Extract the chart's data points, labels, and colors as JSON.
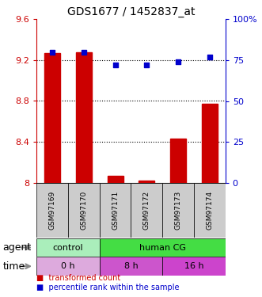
{
  "title": "GDS1677 / 1452837_at",
  "samples": [
    "GSM97169",
    "GSM97170",
    "GSM97171",
    "GSM97172",
    "GSM97173",
    "GSM97174"
  ],
  "red_values": [
    9.27,
    9.28,
    8.07,
    8.02,
    8.43,
    8.77
  ],
  "blue_values": [
    80,
    80,
    72,
    72,
    74,
    77
  ],
  "ylim_left": [
    8.0,
    9.6
  ],
  "ylim_right": [
    0,
    100
  ],
  "yticks_left": [
    8.0,
    8.4,
    8.8,
    9.2,
    9.6
  ],
  "ytick_labels_left": [
    "8",
    "8.4",
    "8.8",
    "9.2",
    "9.6"
  ],
  "yticks_right": [
    0,
    25,
    50,
    75,
    100
  ],
  "ytick_labels_right": [
    "0",
    "25",
    "50",
    "75",
    "100%"
  ],
  "bar_color": "#cc0000",
  "dot_color": "#0000cc",
  "agent_row": [
    {
      "label": "control",
      "span": [
        0,
        2
      ],
      "color": "#aaeebb"
    },
    {
      "label": "human CG",
      "span": [
        2,
        6
      ],
      "color": "#44dd44"
    }
  ],
  "time_row": [
    {
      "label": "0 h",
      "span": [
        0,
        2
      ],
      "color": "#ddaadd"
    },
    {
      "label": "8 h",
      "span": [
        2,
        4
      ],
      "color": "#cc55cc"
    },
    {
      "label": "16 h",
      "span": [
        4,
        6
      ],
      "color": "#cc44cc"
    }
  ],
  "xlabel_agent": "agent",
  "xlabel_time": "time",
  "legend_red": "transformed count",
  "legend_blue": "percentile rank within the sample",
  "bar_bottom": 8.0
}
